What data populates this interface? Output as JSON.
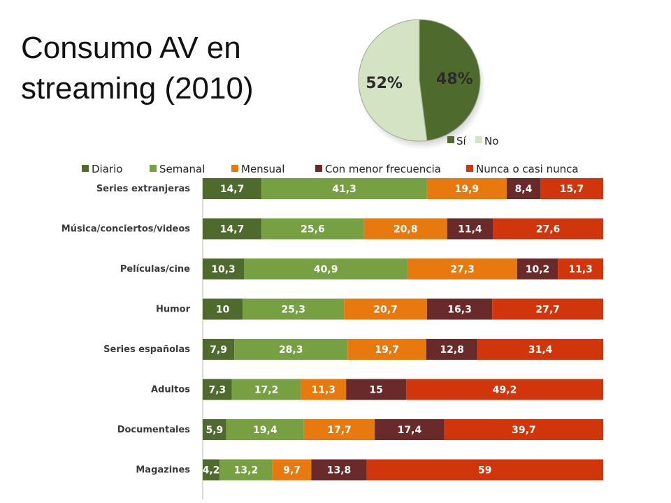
{
  "slide": {
    "title": "Consumo AV en streaming (2010)"
  },
  "chart_data": [
    {
      "type": "pie",
      "categories": [
        "Sí",
        "No"
      ],
      "values": [
        48,
        52
      ],
      "labels": [
        "48%",
        "52%"
      ],
      "colors": [
        "#4e6a2c",
        "#d4e3c3"
      ],
      "legend": "bottom-right"
    },
    {
      "type": "bar",
      "orientation": "horizontal",
      "stacked": true,
      "categories": [
        "Series extranjeras",
        "Música/conciertos/videos",
        "Películas/cine",
        "Humor",
        "Series españolas",
        "Adultos",
        "Documentales",
        "Magazines"
      ],
      "series": [
        {
          "name": "Diario",
          "color": "#4e6a2c",
          "values": [
            14.7,
            14.7,
            10.3,
            10,
            7.9,
            7.3,
            5.9,
            4.2
          ],
          "labels": [
            "14,7",
            "14,7",
            "10,3",
            "10",
            "7,9",
            "7,3",
            "5,9",
            "4,2"
          ]
        },
        {
          "name": "Semanal",
          "color": "#77a043",
          "values": [
            41.3,
            25.6,
            40.9,
            25.3,
            28.3,
            17.2,
            19.4,
            13.2
          ],
          "labels": [
            "41,3",
            "25,6",
            "40,9",
            "25,3",
            "28,3",
            "17,2",
            "19,4",
            "13,2"
          ]
        },
        {
          "name": "Mensual",
          "color": "#e7790f",
          "values": [
            19.9,
            20.8,
            27.3,
            20.7,
            19.7,
            11.3,
            17.7,
            9.7
          ],
          "labels": [
            "19,9",
            "20,8",
            "27,3",
            "20,7",
            "19,7",
            "11,3",
            "17,7",
            "9,7"
          ]
        },
        {
          "name": "Con menor frecuencia",
          "color": "#6b2a2a",
          "values": [
            8.4,
            11.4,
            10.2,
            16.3,
            12.8,
            15,
            17.4,
            13.8
          ],
          "labels": [
            "8,4",
            "11,4",
            "10,2",
            "16,3",
            "12,8",
            "15",
            "17,4",
            "13,8"
          ]
        },
        {
          "name": "Nunca o casi nunca",
          "color": "#d0350b",
          "values": [
            15.7,
            27.6,
            11.3,
            27.7,
            31.4,
            49.2,
            39.7,
            59
          ],
          "labels": [
            "15,7",
            "27,6",
            "11,3",
            "27,7",
            "31,4",
            "49,2",
            "39,7",
            "59"
          ]
        }
      ],
      "legend": "top",
      "grid": false
    }
  ]
}
